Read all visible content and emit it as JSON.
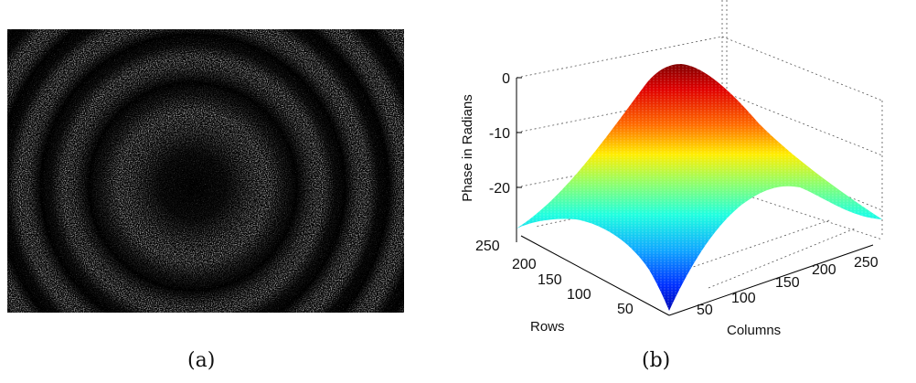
{
  "figure": {
    "panel_a": {
      "caption": "(a)"
    },
    "panel_b": {
      "caption": "(b)"
    }
  },
  "chart_data": {
    "type": "surface",
    "title": "",
    "zlabel": "Phase in Radians",
    "xlabel": "Columns",
    "ylabel": "Rows",
    "z_ticks": [
      "0",
      "-10",
      "-20"
    ],
    "x_ticks": [
      "50",
      "100",
      "150",
      "200",
      "250"
    ],
    "y_ticks": [
      "50",
      "100",
      "150",
      "200",
      "250"
    ],
    "z_values": [
      0,
      -10,
      -20
    ],
    "zlim": [
      -28,
      2
    ],
    "xlim": [
      1,
      256
    ],
    "ylim": [
      1,
      256
    ],
    "peak_phase": 0,
    "colormap": "jet",
    "grid": true
  }
}
